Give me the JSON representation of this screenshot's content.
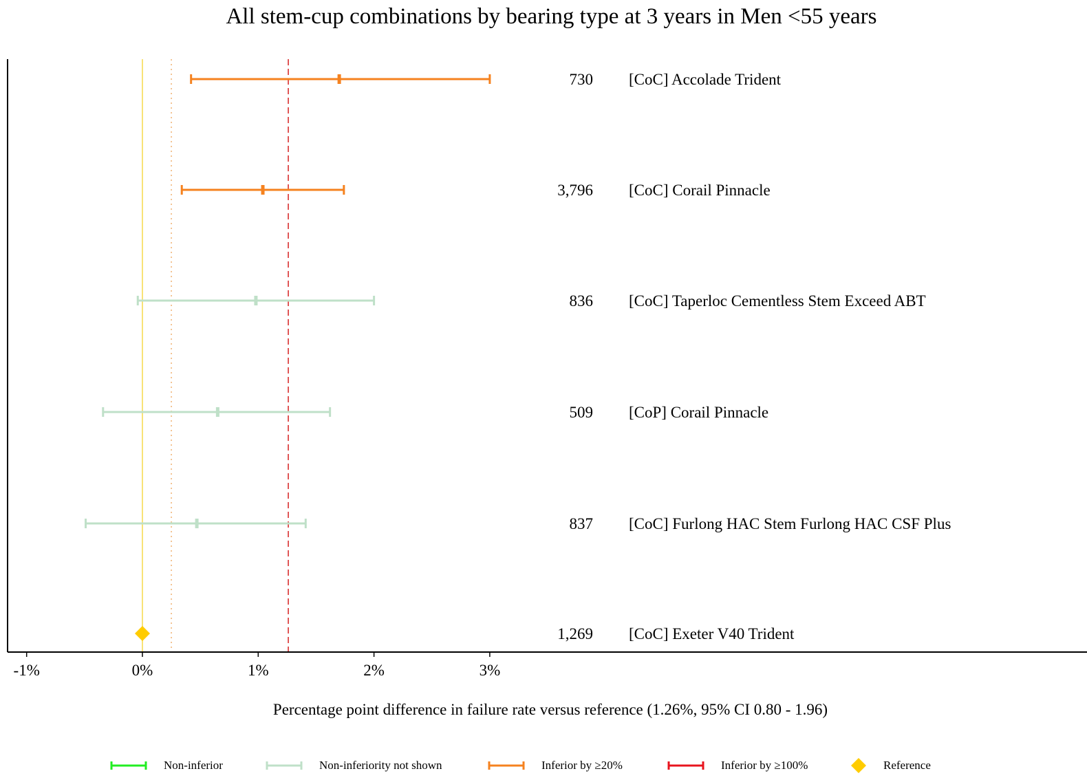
{
  "chart_data": {
    "type": "forest",
    "title": "All stem-cup combinations by bearing type at 3 years in Men <55 years",
    "xlabel": "Percentage point difference in failure rate versus reference (1.26%, 95% CI 0.80 - 1.96)",
    "x_ticks": [
      "-1%",
      "0%",
      "1%",
      "2%",
      "3%"
    ],
    "x_tick_values": [
      -1,
      0,
      1,
      2,
      3
    ],
    "xlim": [
      -1.17,
      8.2
    ],
    "reference_lines": [
      {
        "value": 0,
        "style": "solid",
        "color": "#f5d94a"
      },
      {
        "value": 0.25,
        "style": "dotted",
        "color": "#f0b070"
      },
      {
        "value": 1.26,
        "style": "dashed",
        "color": "#d62020"
      }
    ],
    "rows": [
      {
        "label": "[CoC] Accolade Trident",
        "n": "730",
        "estimate": 1.7,
        "ci_low": 0.42,
        "ci_high": 3.0,
        "category": "inferior20"
      },
      {
        "label": "[CoC] Corail Pinnacle",
        "n": "3,796",
        "estimate": 1.04,
        "ci_low": 0.34,
        "ci_high": 1.74,
        "category": "inferior20"
      },
      {
        "label": "[CoC] Taperloc Cementless Stem Exceed ABT",
        "n": "836",
        "estimate": 0.98,
        "ci_low": -0.04,
        "ci_high": 2.0,
        "category": "not_shown"
      },
      {
        "label": "[CoP] Corail Pinnacle",
        "n": "509",
        "estimate": 0.65,
        "ci_low": -0.34,
        "ci_high": 1.62,
        "category": "not_shown"
      },
      {
        "label": "[CoC] Furlong HAC Stem Furlong HAC CSF Plus",
        "n": "837",
        "estimate": 0.47,
        "ci_low": -0.49,
        "ci_high": 1.41,
        "category": "not_shown"
      },
      {
        "label": "[CoC] Exeter V40 Trident",
        "n": "1,269",
        "estimate": 0,
        "ci_low": null,
        "ci_high": null,
        "category": "reference"
      }
    ],
    "categories": {
      "noninferior": {
        "label": "Non-inferior",
        "color": "#22ee22"
      },
      "not_shown": {
        "label": "Non-inferiority not shown",
        "color": "#bfe0c8"
      },
      "inferior20": {
        "label": "Inferior by ≥20%",
        "color": "#f5821f"
      },
      "inferior100": {
        "label": "Inferior by ≥100%",
        "color": "#e8141e"
      },
      "reference": {
        "label": "Reference",
        "color": "#ffcc00"
      }
    },
    "legend_order": [
      "noninferior",
      "not_shown",
      "inferior20",
      "inferior100",
      "reference"
    ],
    "legend_position": "bottom"
  }
}
